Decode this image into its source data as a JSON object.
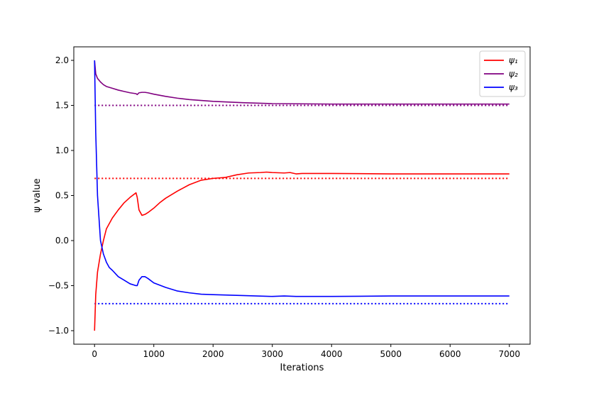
{
  "chart_data": {
    "type": "line",
    "title": "",
    "xlabel": "Iterations",
    "ylabel": "ψ value",
    "xlim": [
      -350,
      7350
    ],
    "ylim": [
      -1.15,
      2.15
    ],
    "xticks": [
      0,
      1000,
      2000,
      3000,
      4000,
      5000,
      6000,
      7000
    ],
    "xtick_labels": [
      "0",
      "1000",
      "2000",
      "3000",
      "4000",
      "5000",
      "6000",
      "7000"
    ],
    "yticks": [
      -1.0,
      -0.5,
      0.0,
      0.5,
      1.0,
      1.5,
      2.0
    ],
    "ytick_labels": [
      "−1.0",
      "−0.5",
      "0.0",
      "0.5",
      "1.0",
      "1.5",
      "2.0"
    ],
    "grid": false,
    "legend_position": "top-right",
    "series": [
      {
        "name": "ψ₁",
        "color": "#ff0000",
        "x": [
          0,
          20,
          50,
          100,
          150,
          200,
          300,
          400,
          500,
          600,
          700,
          720,
          750,
          800,
          850,
          900,
          1000,
          1100,
          1200,
          1400,
          1600,
          1800,
          2000,
          2200,
          2400,
          2600,
          2800,
          2900,
          3000,
          3200,
          3300,
          3400,
          3500,
          4000,
          5000,
          6000,
          7000
        ],
        "y": [
          -1.0,
          -0.6,
          -0.35,
          -0.15,
          0.0,
          0.13,
          0.25,
          0.34,
          0.42,
          0.48,
          0.53,
          0.48,
          0.34,
          0.28,
          0.29,
          0.31,
          0.36,
          0.42,
          0.47,
          0.55,
          0.62,
          0.67,
          0.69,
          0.7,
          0.73,
          0.75,
          0.755,
          0.76,
          0.755,
          0.75,
          0.755,
          0.74,
          0.745,
          0.745,
          0.74,
          0.74,
          0.74
        ]
      },
      {
        "name": "ψ₂",
        "color": "#800080",
        "x": [
          0,
          20,
          50,
          100,
          150,
          200,
          300,
          400,
          500,
          600,
          700,
          720,
          750,
          800,
          850,
          900,
          1000,
          1200,
          1400,
          1600,
          1800,
          2000,
          2500,
          3000,
          4000,
          5000,
          6000,
          7000
        ],
        "y": [
          2.0,
          1.85,
          1.8,
          1.76,
          1.73,
          1.71,
          1.69,
          1.67,
          1.655,
          1.64,
          1.63,
          1.62,
          1.64,
          1.645,
          1.645,
          1.64,
          1.625,
          1.6,
          1.58,
          1.565,
          1.555,
          1.545,
          1.53,
          1.52,
          1.515,
          1.515,
          1.515,
          1.515
        ]
      },
      {
        "name": "ψ₃",
        "color": "#0000ff",
        "x": [
          0,
          20,
          50,
          100,
          150,
          200,
          250,
          300,
          400,
          500,
          600,
          700,
          720,
          750,
          800,
          850,
          900,
          1000,
          1200,
          1400,
          1600,
          1800,
          2000,
          2500,
          3000,
          3200,
          3400,
          4000,
          5000,
          6000,
          7000
        ],
        "y": [
          2.0,
          1.2,
          0.5,
          0.0,
          -0.15,
          -0.24,
          -0.3,
          -0.33,
          -0.4,
          -0.44,
          -0.48,
          -0.5,
          -0.5,
          -0.44,
          -0.4,
          -0.4,
          -0.42,
          -0.47,
          -0.52,
          -0.56,
          -0.58,
          -0.595,
          -0.6,
          -0.61,
          -0.62,
          -0.615,
          -0.62,
          -0.62,
          -0.615,
          -0.615,
          -0.615
        ]
      }
    ],
    "reference_lines": [
      {
        "color": "#ff0000",
        "y": 0.69,
        "x_range": [
          0,
          7000
        ],
        "style": "dotted"
      },
      {
        "color": "#800080",
        "y": 1.5,
        "x_range": [
          0,
          7000
        ],
        "style": "dotted"
      },
      {
        "color": "#0000ff",
        "y": -0.7,
        "x_range": [
          0,
          7000
        ],
        "style": "dotted"
      }
    ]
  }
}
